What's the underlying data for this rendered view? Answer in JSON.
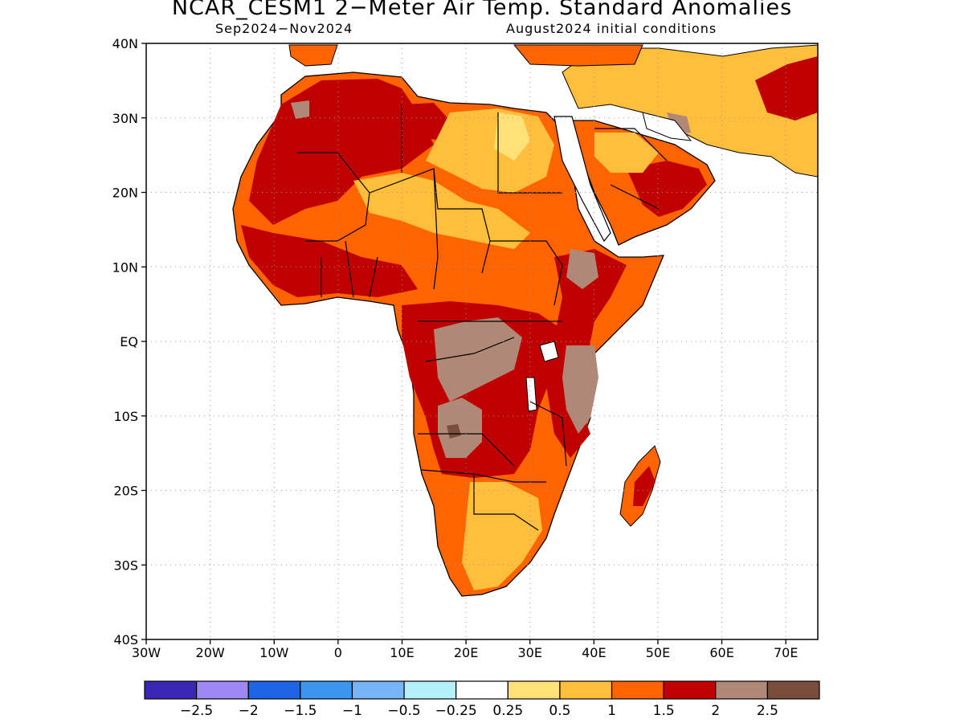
{
  "header": {
    "title": "NCAR_CESM1 2−Meter Air Temp. Standard Anomalies",
    "period": "Sep2024−Nov2024",
    "init": "August2024 initial conditions"
  },
  "map": {
    "lat_labels": [
      "40N",
      "30N",
      "20N",
      "10N",
      "EQ",
      "10S",
      "20S",
      "30S",
      "40S"
    ],
    "lon_labels": [
      "30W",
      "20W",
      "10W",
      "0",
      "10E",
      "20E",
      "30E",
      "40E",
      "50E",
      "60E",
      "70E"
    ]
  },
  "legend": {
    "colors": [
      "#3c26b4",
      "#9d88f4",
      "#1e64e6",
      "#3c96f0",
      "#78b4f8",
      "#b4f0fa",
      "#ffffff",
      "#ffe178",
      "#ffbe3c",
      "#ff6400",
      "#c00000",
      "#b08878",
      "#7a4e3c"
    ],
    "labels": [
      "−2.5",
      "−2",
      "−1.5",
      "−1",
      "−0.5",
      "−0.25",
      "0.25",
      "0.5",
      "1",
      "1.5",
      "2",
      "2.5"
    ]
  }
}
